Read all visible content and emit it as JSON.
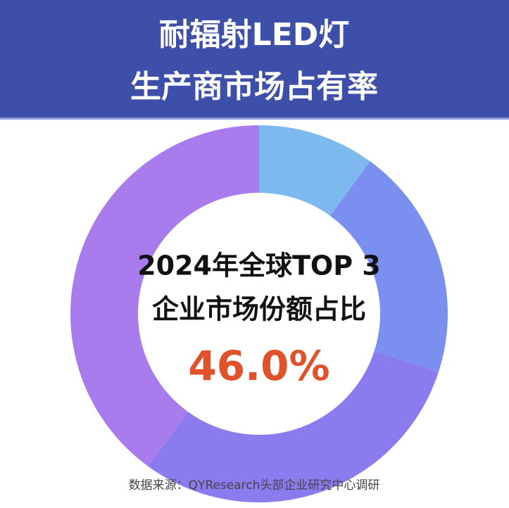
{
  "chart_data": {
    "type": "pie",
    "title": "耐辐射LED灯",
    "subtitle": "生产商市场占有率",
    "center_text": [
      "2024年全球TOP 3",
      "企业市场份额占比"
    ],
    "center_value": "46.0%",
    "source": "数据来源：QYResearch头部企业研究中心调研",
    "categories": [
      null,
      null,
      null,
      null
    ],
    "values": [
      10,
      20,
      30,
      40
    ],
    "colors": [
      "#7db8ee",
      "#7b8ff0",
      "#8a7cef",
      "#a97cee"
    ],
    "donut": true
  }
}
